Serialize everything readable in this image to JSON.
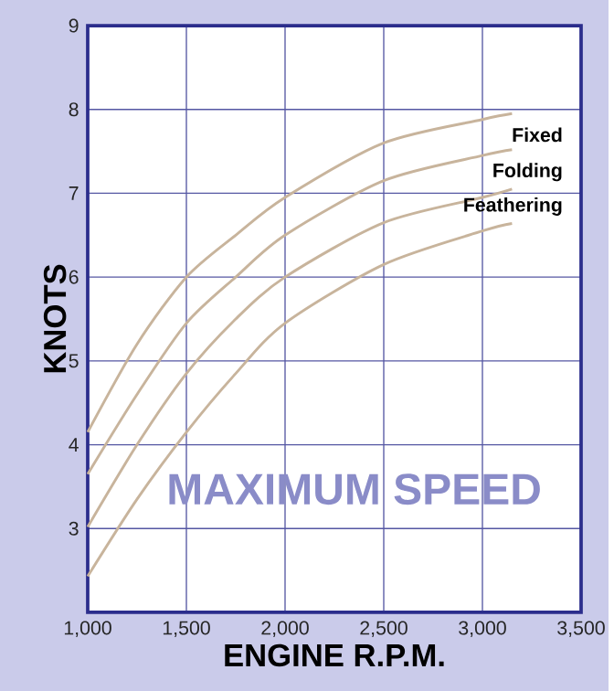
{
  "chart_data": {
    "type": "line",
    "title": "MAXIMUM SPEED",
    "xlabel": "ENGINE R.P.M.",
    "ylabel": "KNOTS",
    "xlim": [
      1000,
      3500
    ],
    "ylim": [
      2,
      9
    ],
    "xticks": [
      {
        "value": 1000,
        "label": "1,000"
      },
      {
        "value": 1500,
        "label": "1,500"
      },
      {
        "value": 2000,
        "label": "2,000"
      },
      {
        "value": 2500,
        "label": "2,500"
      },
      {
        "value": 3000,
        "label": "3,000"
      },
      {
        "value": 3500,
        "label": "3,500"
      }
    ],
    "yticks": [
      3,
      4,
      5,
      6,
      7,
      8,
      9
    ],
    "grid": true,
    "marker": "none",
    "line_style": "solid",
    "x": [
      1000,
      1250,
      1500,
      1750,
      2000,
      2500,
      3000,
      3150
    ],
    "series": [
      {
        "color": "#c8b49c",
        "values": [
          4.15,
          5.2,
          6.0,
          6.5,
          6.95,
          7.6,
          7.88,
          7.95
        ]
      },
      {
        "name": "Fixed",
        "color": "#c8b49c",
        "values": [
          3.65,
          4.6,
          5.45,
          6.0,
          6.5,
          7.15,
          7.45,
          7.52
        ]
      },
      {
        "name": "Folding",
        "color": "#c8b49c",
        "values": [
          3.02,
          4.0,
          4.85,
          5.5,
          6.0,
          6.65,
          6.95,
          7.05
        ]
      },
      {
        "name": "Feathering",
        "color": "#c8b49c",
        "values": [
          2.43,
          3.35,
          4.15,
          4.85,
          5.45,
          6.15,
          6.55,
          6.64
        ]
      }
    ]
  }
}
